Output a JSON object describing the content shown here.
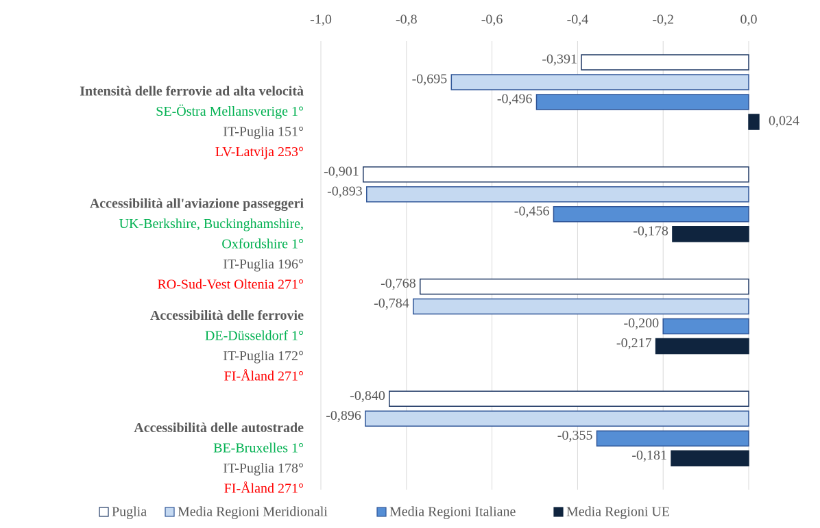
{
  "chart_data": {
    "type": "barh",
    "categories": [
      "Intensità delle ferrovie ad alta velocità",
      "Accessibilità all'aviazione passeggeri",
      "Accessibilità delle ferrovie",
      "Accessibilità delle autostrade"
    ],
    "category_notes": [
      {
        "best": [
          "SE-Östra Mellansverige 1°"
        ],
        "rank": "IT-Puglia 151°",
        "worst": "LV-Latvija 253°"
      },
      {
        "best": [
          "UK-Berkshire, Buckinghamshire,",
          "Oxfordshire 1°"
        ],
        "rank": "IT-Puglia 196°",
        "worst": "RO-Sud-Vest Oltenia 271°"
      },
      {
        "best": [
          "DE-Düsseldorf 1°"
        ],
        "rank": "IT-Puglia 172°",
        "worst": "FI-Åland 271°"
      },
      {
        "best": [
          "BE-Bruxelles 1°"
        ],
        "rank": "IT-Puglia 178°",
        "worst": "FI-Åland 271°"
      }
    ],
    "series": [
      {
        "name": "Puglia",
        "color": "#ffffff",
        "stroke": "#1f3864",
        "values": [
          -0.391,
          -0.901,
          -0.768,
          -0.84
        ],
        "value_labels": [
          "-0,391",
          "-0,901",
          "-0,768",
          "-0,840"
        ]
      },
      {
        "name": "Media Regioni Meridionali",
        "color": "#c5d9f1",
        "stroke": "#2f5597",
        "values": [
          -0.695,
          -0.893,
          -0.784,
          -0.896
        ],
        "value_labels": [
          "-0,695",
          "-0,893",
          "-0,784",
          "-0,896"
        ]
      },
      {
        "name": "Media Regioni Italiane",
        "color": "#558ed5",
        "stroke": "#2f5597",
        "values": [
          -0.496,
          -0.456,
          -0.2,
          -0.355
        ],
        "value_labels": [
          "-0,496",
          "-0,456",
          "-0,200",
          "-0,355"
        ]
      },
      {
        "name": "Media Regioni UE",
        "color": "#0f243e",
        "stroke": "#0f243e",
        "values": [
          0.024,
          -0.178,
          -0.217,
          -0.181
        ],
        "value_labels": [
          "0,024",
          "-0,178",
          "-0,217",
          "-0,181"
        ]
      }
    ],
    "xlim": [
      -1,
      0
    ],
    "xticks": [
      {
        "value": -1,
        "label": "-1,0"
      },
      {
        "value": -0.8,
        "label": "-0,8"
      },
      {
        "value": -0.6,
        "label": "-0,6"
      },
      {
        "value": -0.4,
        "label": "-0,4"
      },
      {
        "value": -0.2,
        "label": "-0,2"
      },
      {
        "value": 0,
        "label": "0,0"
      }
    ],
    "grid": true,
    "legend": "bottom"
  }
}
